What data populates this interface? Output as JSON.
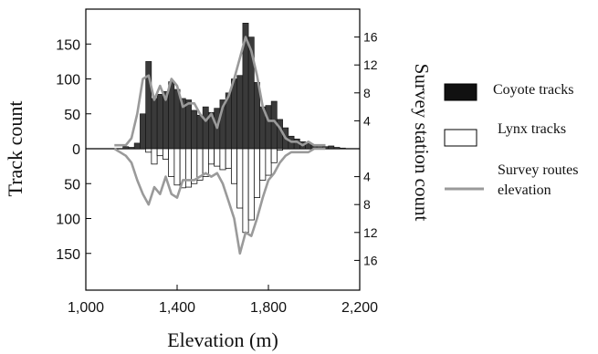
{
  "chart_data": {
    "type": "bar",
    "xlabel": "Elevation (m)",
    "ylabel_left": "Track count",
    "ylabel_right": "Survey station count",
    "xlim": [
      1000,
      2200
    ],
    "xticks": [
      1000,
      1400,
      1800,
      2200
    ],
    "xtick_labels": [
      "1,000",
      "1,400",
      "1,800",
      "2,200"
    ],
    "ylim_left": [
      -200,
      200
    ],
    "yticks_left": [
      -150,
      -100,
      -50,
      0,
      50,
      100,
      150
    ],
    "ytick_labels_left": [
      "150",
      "100",
      "50",
      "0",
      "50",
      "100",
      "150"
    ],
    "ylim_right": [
      -20,
      20
    ],
    "yticks_right": [
      -16,
      -12,
      -8,
      -4,
      4,
      8,
      12,
      16
    ],
    "ytick_labels_right": [
      "16",
      "12",
      "8",
      "4",
      "4",
      "8",
      "12",
      "16"
    ],
    "bin_width": 25,
    "colors": {
      "coyote": "#3a3a3a",
      "lynx": "#ffffff",
      "route": "#9a9a9a"
    },
    "series": [
      {
        "name": "Coyote tracks",
        "x": [
          1175,
          1200,
          1225,
          1250,
          1275,
          1300,
          1325,
          1350,
          1375,
          1400,
          1425,
          1450,
          1475,
          1500,
          1525,
          1550,
          1575,
          1600,
          1625,
          1650,
          1675,
          1700,
          1725,
          1750,
          1775,
          1800,
          1825,
          1850,
          1875,
          1900,
          1925,
          1950,
          1975,
          2000,
          2025,
          2050,
          2075,
          2100,
          2125
        ],
        "values": [
          3,
          2,
          8,
          50,
          125,
          72,
          78,
          82,
          96,
          85,
          72,
          70,
          55,
          48,
          60,
          52,
          58,
          70,
          80,
          100,
          105,
          180,
          160,
          95,
          60,
          62,
          68,
          42,
          30,
          18,
          14,
          10,
          8,
          6,
          4,
          3,
          4,
          2,
          1
        ]
      },
      {
        "name": "Lynx tracks",
        "x": [
          1250,
          1275,
          1300,
          1325,
          1350,
          1375,
          1400,
          1425,
          1450,
          1475,
          1500,
          1525,
          1550,
          1575,
          1600,
          1625,
          1650,
          1675,
          1700,
          1725,
          1750,
          1775,
          1800,
          1825,
          1850
        ],
        "values": [
          0,
          -5,
          -22,
          -10,
          -15,
          -40,
          -52,
          -56,
          -55,
          -50,
          -45,
          -40,
          -22,
          -25,
          -30,
          -28,
          -50,
          -85,
          -120,
          -102,
          -70,
          -45,
          -38,
          -20,
          -2
        ]
      },
      {
        "name": "Survey routes elevation",
        "x": [
          1125,
          1150,
          1175,
          1200,
          1225,
          1250,
          1275,
          1300,
          1325,
          1350,
          1375,
          1400,
          1425,
          1450,
          1475,
          1500,
          1525,
          1550,
          1575,
          1600,
          1625,
          1650,
          1675,
          1700,
          1725,
          1750,
          1775,
          1800,
          1825,
          1850,
          1875,
          1900,
          1925,
          1950,
          1975,
          2000,
          2025,
          2050
        ],
        "upper": [
          0.5,
          0.5,
          0.5,
          1.5,
          5,
          10,
          10.5,
          7,
          9,
          7,
          10,
          9,
          6,
          6.5,
          6.5,
          5,
          4,
          5,
          3,
          6,
          7.5,
          10,
          13,
          16,
          14,
          10.5,
          6,
          4,
          4,
          3,
          1.5,
          1,
          1,
          0.5,
          1,
          0.5,
          0.5,
          0.5
        ],
        "lower": [
          0,
          -0.5,
          -1,
          -2,
          -4.5,
          -6.5,
          -8,
          -5.5,
          -6.5,
          -4,
          -6.5,
          -7,
          -4.5,
          -4.5,
          -4.5,
          -4,
          -3.5,
          -4,
          -3.5,
          -5,
          -7.5,
          -10,
          -15,
          -12,
          -12.5,
          -10,
          -7,
          -4.5,
          -3.5,
          -2,
          -1,
          -0.5,
          -0.5,
          -0.5,
          -0.5,
          0,
          0,
          0
        ]
      }
    ],
    "legend": {
      "coyote": "Coyote tracks",
      "lynx": "Lynx tracks",
      "route_line1": "Survey routes",
      "route_line2": "elevation"
    }
  }
}
